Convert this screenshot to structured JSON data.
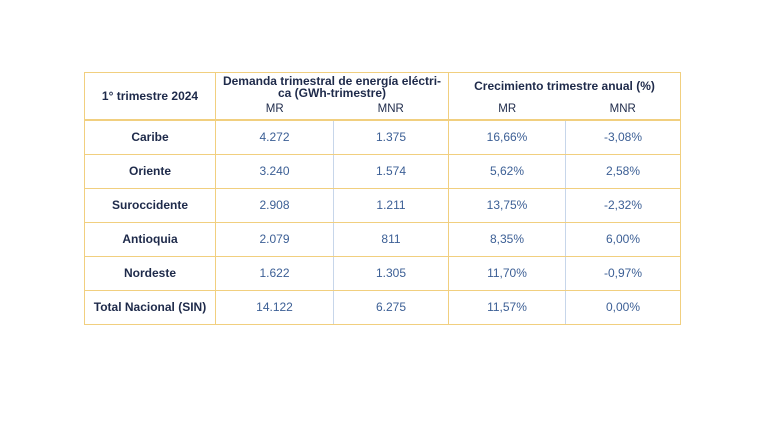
{
  "table": {
    "corner": "1° trimestre 2024",
    "groups": [
      {
        "lines": [
          "Demanda trimestral de energía eléctri-",
          "ca (GWh-trimestre)"
        ]
      },
      {
        "lines": [
          "Crecimiento trimestre anual (%)"
        ]
      }
    ],
    "subheaders": [
      "MR",
      "MNR",
      "MR",
      "MNR"
    ],
    "rows": [
      [
        "Caribe",
        "4.272",
        "1.375",
        "16,66%",
        "-3,08%"
      ],
      [
        "Oriente",
        "3.240",
        "1.574",
        "5,62%",
        "2,58%"
      ],
      [
        "Suroccidente",
        "2.908",
        "1.211",
        "13,75%",
        "-2,32%"
      ],
      [
        "Antioquia",
        "2.079",
        "811",
        "8,35%",
        "6,00%"
      ],
      [
        "Nordeste",
        "1.622",
        "1.305",
        "11,70%",
        "-0,97%"
      ],
      [
        "Total Nacional (SIN)",
        "14.122",
        "6.275",
        "11,57%",
        "0,00%"
      ]
    ]
  }
}
